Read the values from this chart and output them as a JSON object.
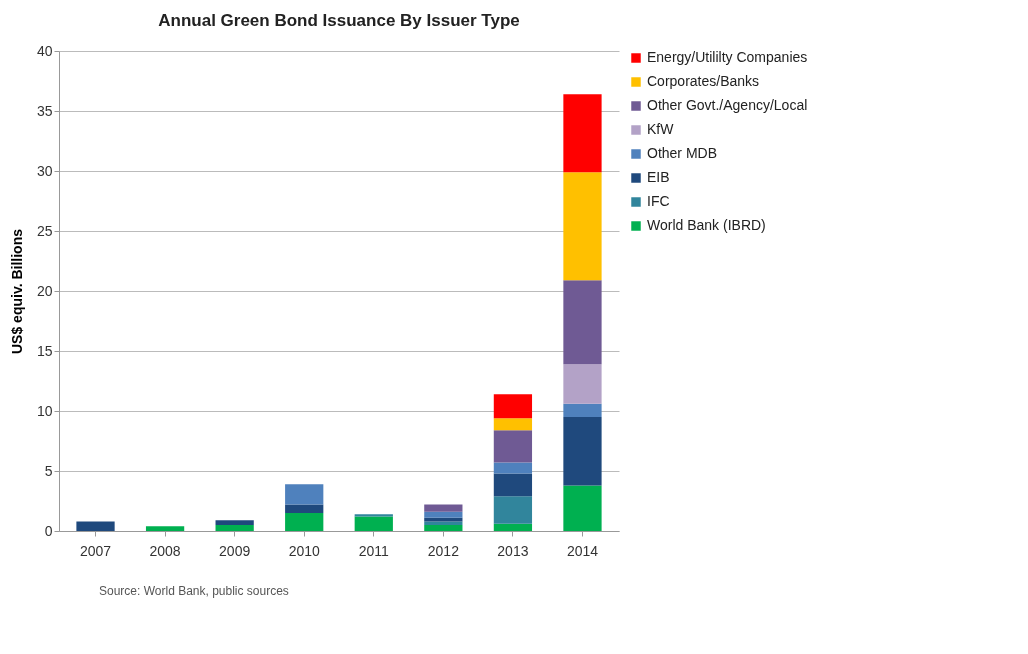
{
  "chart_data": {
    "type": "bar",
    "stacked": true,
    "title": "Annual Green Bond Issuance By Issuer Type",
    "ylabel": "US$ equiv. Billions",
    "categories": [
      "2007",
      "2008",
      "2009",
      "2010",
      "2011",
      "2012",
      "2013",
      "2014"
    ],
    "series": [
      {
        "name": "World Bank (IBRD)",
        "color": "#00b050",
        "values": [
          0,
          0.4,
          0.5,
          1.5,
          1.2,
          0.5,
          0.6,
          3.8
        ]
      },
      {
        "name": "IFC",
        "color": "#31859c",
        "values": [
          0,
          0,
          0,
          0,
          0.2,
          0.3,
          2.3,
          0
        ]
      },
      {
        "name": "EIB",
        "color": "#1f497d",
        "values": [
          0.8,
          0,
          0.4,
          0.7,
          0,
          0.3,
          1.9,
          5.7
        ]
      },
      {
        "name": "Other MDB",
        "color": "#4f81bd",
        "values": [
          0,
          0,
          0,
          1.7,
          0,
          0.5,
          0.9,
          1.1
        ]
      },
      {
        "name": "KfW",
        "color": "#b3a2c7",
        "values": [
          0,
          0,
          0,
          0,
          0,
          0,
          0,
          3.3
        ]
      },
      {
        "name": "Other Govt./Agency/Local",
        "color": "#6f5a94",
        "values": [
          0,
          0,
          0,
          0,
          0,
          0.6,
          2.7,
          7.0
        ]
      },
      {
        "name": "Corporates/Banks",
        "color": "#ffc000",
        "values": [
          0,
          0,
          0,
          0,
          0,
          0,
          1.0,
          9.0
        ]
      },
      {
        "name": "Energy/Utililty Companies",
        "color": "#ff0000",
        "values": [
          0,
          0,
          0,
          0,
          0,
          0,
          2.0,
          6.5
        ]
      }
    ],
    "ylim": [
      0,
      40
    ],
    "yticks": [
      0,
      5,
      10,
      15,
      20,
      25,
      30,
      35,
      40
    ],
    "grid": "y",
    "legend": "right",
    "annotations": [
      "Source: World Bank, public sources"
    ]
  }
}
